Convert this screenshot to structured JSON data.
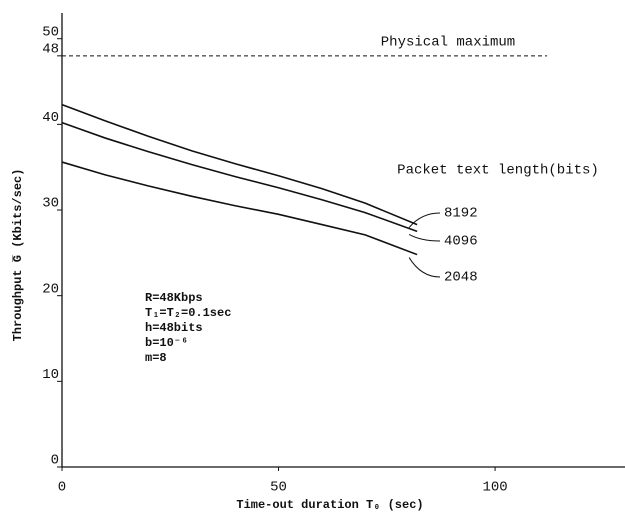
{
  "chart_data": {
    "type": "line",
    "x_label": "Time-out duration T₀ (sec)",
    "y_label": "Throughput G̅ (Kbits/sec)",
    "x": [
      0,
      10,
      20,
      30,
      40,
      50,
      60,
      70,
      82
    ],
    "series": [
      {
        "name": "8192",
        "color": "#111111",
        "values": [
          42.3,
          40.4,
          38.6,
          36.9,
          35.4,
          34.0,
          32.5,
          30.8,
          28.3
        ]
      },
      {
        "name": "4096",
        "color": "#111111",
        "values": [
          40.2,
          38.4,
          36.8,
          35.3,
          33.9,
          32.6,
          31.2,
          29.7,
          27.5
        ]
      },
      {
        "name": "2048",
        "color": "#111111",
        "values": [
          35.6,
          34.1,
          32.8,
          31.6,
          30.5,
          29.5,
          28.3,
          27.1,
          24.8
        ]
      }
    ],
    "legend_title": "Packet text length(bits)",
    "reference_line": {
      "value": 48,
      "label": "Physical maximum",
      "x_end": 112
    },
    "parameters": [
      "R=48Kbps",
      "T₁=T₂=0.1sec",
      "h=48bits",
      "b=10⁻⁶",
      "m=8"
    ],
    "xlim": [
      0,
      130
    ],
    "ylim": [
      0,
      53
    ],
    "xticks": [
      0,
      50,
      100
    ],
    "yticks": [
      0,
      10,
      20,
      30,
      40,
      48,
      50
    ]
  }
}
